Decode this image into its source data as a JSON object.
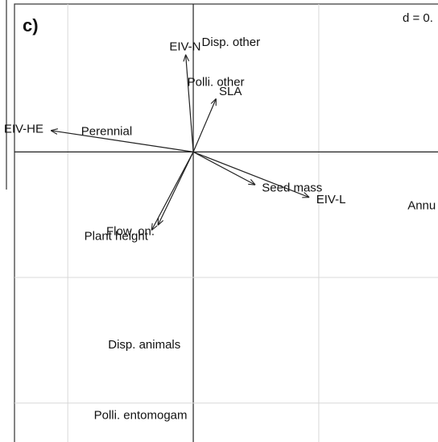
{
  "chart_data": {
    "type": "biplot",
    "panel_label": "c)",
    "scale_label": "d = 0.",
    "xlim": [
      -1.54,
      1.95
    ],
    "ylim": [
      -2.31,
      1.21
    ],
    "xticks": [
      -1,
      0,
      1
    ],
    "yticks": [
      0,
      -1,
      -2
    ],
    "grid": true,
    "arrows": [
      {
        "name": "EIV-N",
        "x": -0.06,
        "y": 0.77
      },
      {
        "name": "SLA",
        "x": 0.18,
        "y": 0.42
      },
      {
        "name": "EIV-HE",
        "x": -1.13,
        "y": 0.17
      },
      {
        "name": "Seed mass",
        "x": 0.49,
        "y": -0.26
      },
      {
        "name": "EIV-L",
        "x": 0.92,
        "y": -0.36
      },
      {
        "name": "Plant height",
        "x": -0.33,
        "y": -0.62
      },
      {
        "name": "Flow. on.",
        "x": -0.28,
        "y": -0.58
      }
    ],
    "points": [
      {
        "name": "Disp. other",
        "x": 0.3,
        "y": 0.87
      },
      {
        "name": "Polli. other",
        "x": 0.18,
        "y": 0.55
      },
      {
        "name": "Perennial",
        "x": -0.69,
        "y": 0.16
      },
      {
        "name": "Annu",
        "x": 1.82,
        "y": -0.43
      },
      {
        "name": "Disp. animals",
        "x": -0.39,
        "y": -1.54
      },
      {
        "name": "Polli. entomogam",
        "x": -0.42,
        "y": -2.1
      }
    ]
  }
}
